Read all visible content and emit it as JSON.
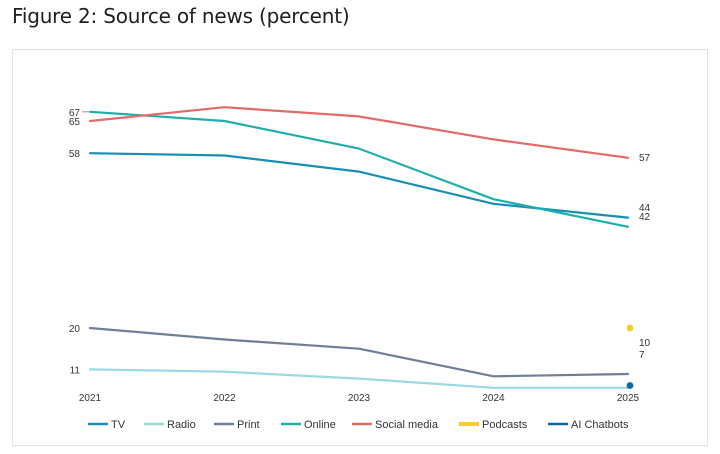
{
  "page": {
    "title": "Figure 2: Source of news (percent)"
  },
  "chart_data": {
    "type": "line",
    "title": "Figure 2: Source of news (percent)",
    "xlabel": "",
    "ylabel": "",
    "x": [
      "2021",
      "2022",
      "2023",
      "2024",
      "2025"
    ],
    "ylim": [
      0,
      70
    ],
    "grid": false,
    "legend_position": "bottom",
    "y_tick_labels": [
      {
        "value": 67,
        "label": "67"
      },
      {
        "value": 65,
        "label": "65"
      },
      {
        "value": 58,
        "label": "58"
      },
      {
        "value": 20,
        "label": "20"
      },
      {
        "value": 11,
        "label": "11"
      }
    ],
    "end_labels": [
      {
        "series": "Social media",
        "label": "57"
      },
      {
        "series": "TV",
        "label": "44"
      },
      {
        "series": "Online",
        "label": "42"
      },
      {
        "series": "Print",
        "label": "10"
      },
      {
        "series": "Radio",
        "label": "7"
      }
    ],
    "series": [
      {
        "name": "TV",
        "color": "#1a8fb4",
        "values": [
          58,
          57.5,
          54,
          47,
          44
        ]
      },
      {
        "name": "Radio",
        "color": "#99d9e4",
        "values": [
          11,
          10.5,
          9,
          7,
          7
        ]
      },
      {
        "name": "Print",
        "color": "#6e7f99",
        "values": [
          20,
          17.5,
          15.5,
          9.5,
          10
        ]
      },
      {
        "name": "Online",
        "color": "#1eafac",
        "values": [
          67,
          65,
          59,
          48,
          42
        ]
      },
      {
        "name": "Social media",
        "color": "#e26b68",
        "values": [
          65,
          68,
          66,
          61,
          57
        ]
      },
      {
        "name": "Podcasts",
        "color": "#f7cc2e",
        "values": [
          null,
          null,
          null,
          null,
          20
        ]
      },
      {
        "name": "AI Chatbots",
        "color": "#1168a0",
        "values": [
          null,
          null,
          null,
          null,
          7.5
        ]
      }
    ]
  }
}
